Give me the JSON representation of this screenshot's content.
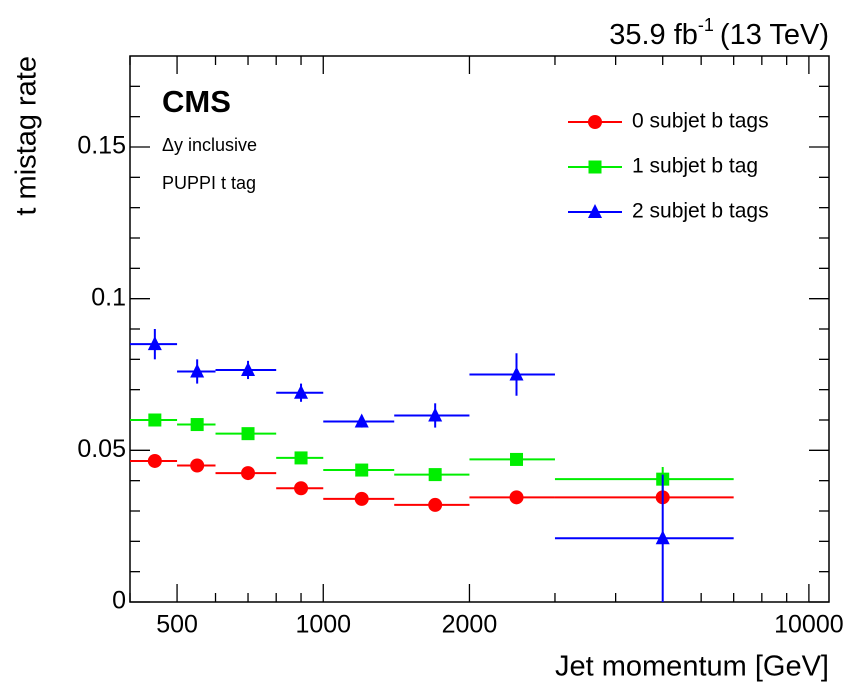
{
  "chart_data": {
    "type": "errorbar",
    "lumi": "35.9 fb",
    "lumi_sup": "-1",
    "energy": "(13 TeV)",
    "experiment": "CMS",
    "annotations": [
      "Δy inclusive",
      "PUPPI t tag"
    ],
    "xlabel": "Jet momentum [GeV]",
    "ylabel": "t mistag rate",
    "xscale": "log",
    "xlim": [
      400,
      11000
    ],
    "ylim": [
      0,
      0.18
    ],
    "xticks": [
      500,
      1000,
      2000,
      10000
    ],
    "xminorticks": [
      400,
      600,
      700,
      800,
      900,
      3000,
      4000,
      5000,
      6000,
      7000,
      8000,
      9000
    ],
    "yticks": [
      0,
      0.05,
      0.1,
      0.15
    ],
    "yminorticks": [
      0.01,
      0.02,
      0.03,
      0.04,
      0.06,
      0.07,
      0.08,
      0.09,
      0.11,
      0.12,
      0.13,
      0.14,
      0.16,
      0.17
    ],
    "bins": [
      400,
      500,
      600,
      800,
      1000,
      1400,
      2000,
      3000,
      7000
    ],
    "x": [
      450,
      550,
      700,
      900,
      1200,
      1700,
      2500,
      5000
    ],
    "series": [
      {
        "name": "0 subjet b tags",
        "color": "#ff0000",
        "marker": "circle",
        "values": [
          0.0465,
          0.045,
          0.0425,
          0.0375,
          0.034,
          0.032,
          0.0345,
          0.0345
        ],
        "errors": [
          0.001,
          0.001,
          0.001,
          0.001,
          0.001,
          0.001,
          0.001,
          0.001
        ]
      },
      {
        "name": "1 subjet b tag",
        "color": "#00ee00",
        "marker": "square",
        "values": [
          0.06,
          0.0585,
          0.0555,
          0.0475,
          0.0435,
          0.042,
          0.047,
          0.0405
        ],
        "errors": [
          0.001,
          0.001,
          0.001,
          0.001,
          0.001,
          0.001,
          0.001,
          0.004
        ]
      },
      {
        "name": "2 subjet b tags",
        "color": "#0000ff",
        "marker": "triangle",
        "values": [
          0.085,
          0.076,
          0.0765,
          0.069,
          0.0595,
          0.0615,
          0.075,
          0.021
        ],
        "errors": [
          0.005,
          0.004,
          0.003,
          0.003,
          0.002,
          0.004,
          0.007,
          0.021
        ]
      }
    ]
  }
}
